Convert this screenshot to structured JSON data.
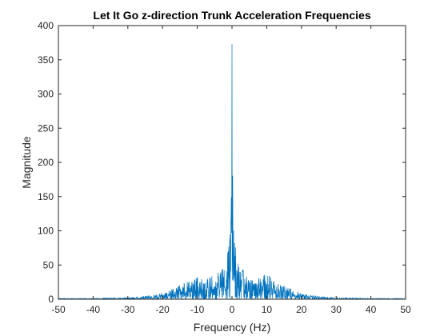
{
  "chart_data": {
    "type": "line",
    "title": "Let It Go z-direction Trunk Acceleration Frequencies",
    "xlabel": "Frequency (Hz)",
    "ylabel": "Magnitude",
    "xlim": [
      -50,
      50
    ],
    "ylim": [
      0,
      400
    ],
    "xticks": [
      -50,
      -40,
      -30,
      -20,
      -10,
      0,
      10,
      20,
      30,
      40,
      50
    ],
    "yticks": [
      0,
      50,
      100,
      150,
      200,
      250,
      300,
      350,
      400
    ],
    "grid": false,
    "legend": "none",
    "line_color": "#0072BD",
    "series": [
      {
        "x": [
          -50,
          -40,
          -30,
          -25,
          -20,
          -18,
          -16,
          -14,
          -12,
          -10,
          -8,
          -6,
          -5,
          -4,
          -3,
          -2,
          -1.5,
          -1,
          -0.5,
          -0.3,
          -0.15,
          0,
          0.15,
          0.3,
          0.5,
          1,
          1.5,
          2,
          3,
          4,
          5,
          6,
          8,
          10,
          12,
          14,
          16,
          18,
          20,
          25,
          30,
          40,
          50
        ],
        "values": [
          1,
          1,
          2,
          4,
          7,
          12,
          16,
          20,
          25,
          34,
          27,
          35,
          24,
          36,
          38,
          44,
          52,
          72,
          95,
          120,
          180,
          373,
          180,
          120,
          95,
          72,
          52,
          44,
          38,
          36,
          24,
          35,
          27,
          34,
          25,
          20,
          16,
          12,
          7,
          4,
          2,
          1,
          1
        ]
      }
    ]
  }
}
